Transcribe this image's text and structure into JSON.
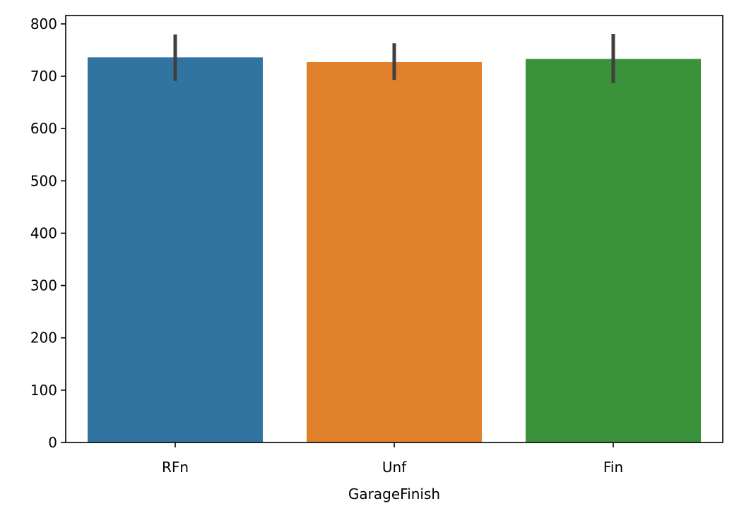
{
  "chart_data": {
    "type": "bar",
    "title": "",
    "xlabel": "GarageFinish",
    "ylabel": "",
    "categories": [
      "RFn",
      "Unf",
      "Fin"
    ],
    "values": [
      736,
      727,
      733
    ],
    "error_bars": [
      {
        "low": 691,
        "high": 780
      },
      {
        "low": 693,
        "high": 763
      },
      {
        "low": 687,
        "high": 781
      }
    ],
    "colors": [
      "#3274a1",
      "#e1812c",
      "#3a923a"
    ],
    "error_bar_color": "#3f3f3f",
    "ylim": [
      0,
      816
    ],
    "yticks": [
      0,
      100,
      200,
      300,
      400,
      500,
      600,
      700,
      800
    ],
    "grid": false,
    "legend": "none"
  }
}
